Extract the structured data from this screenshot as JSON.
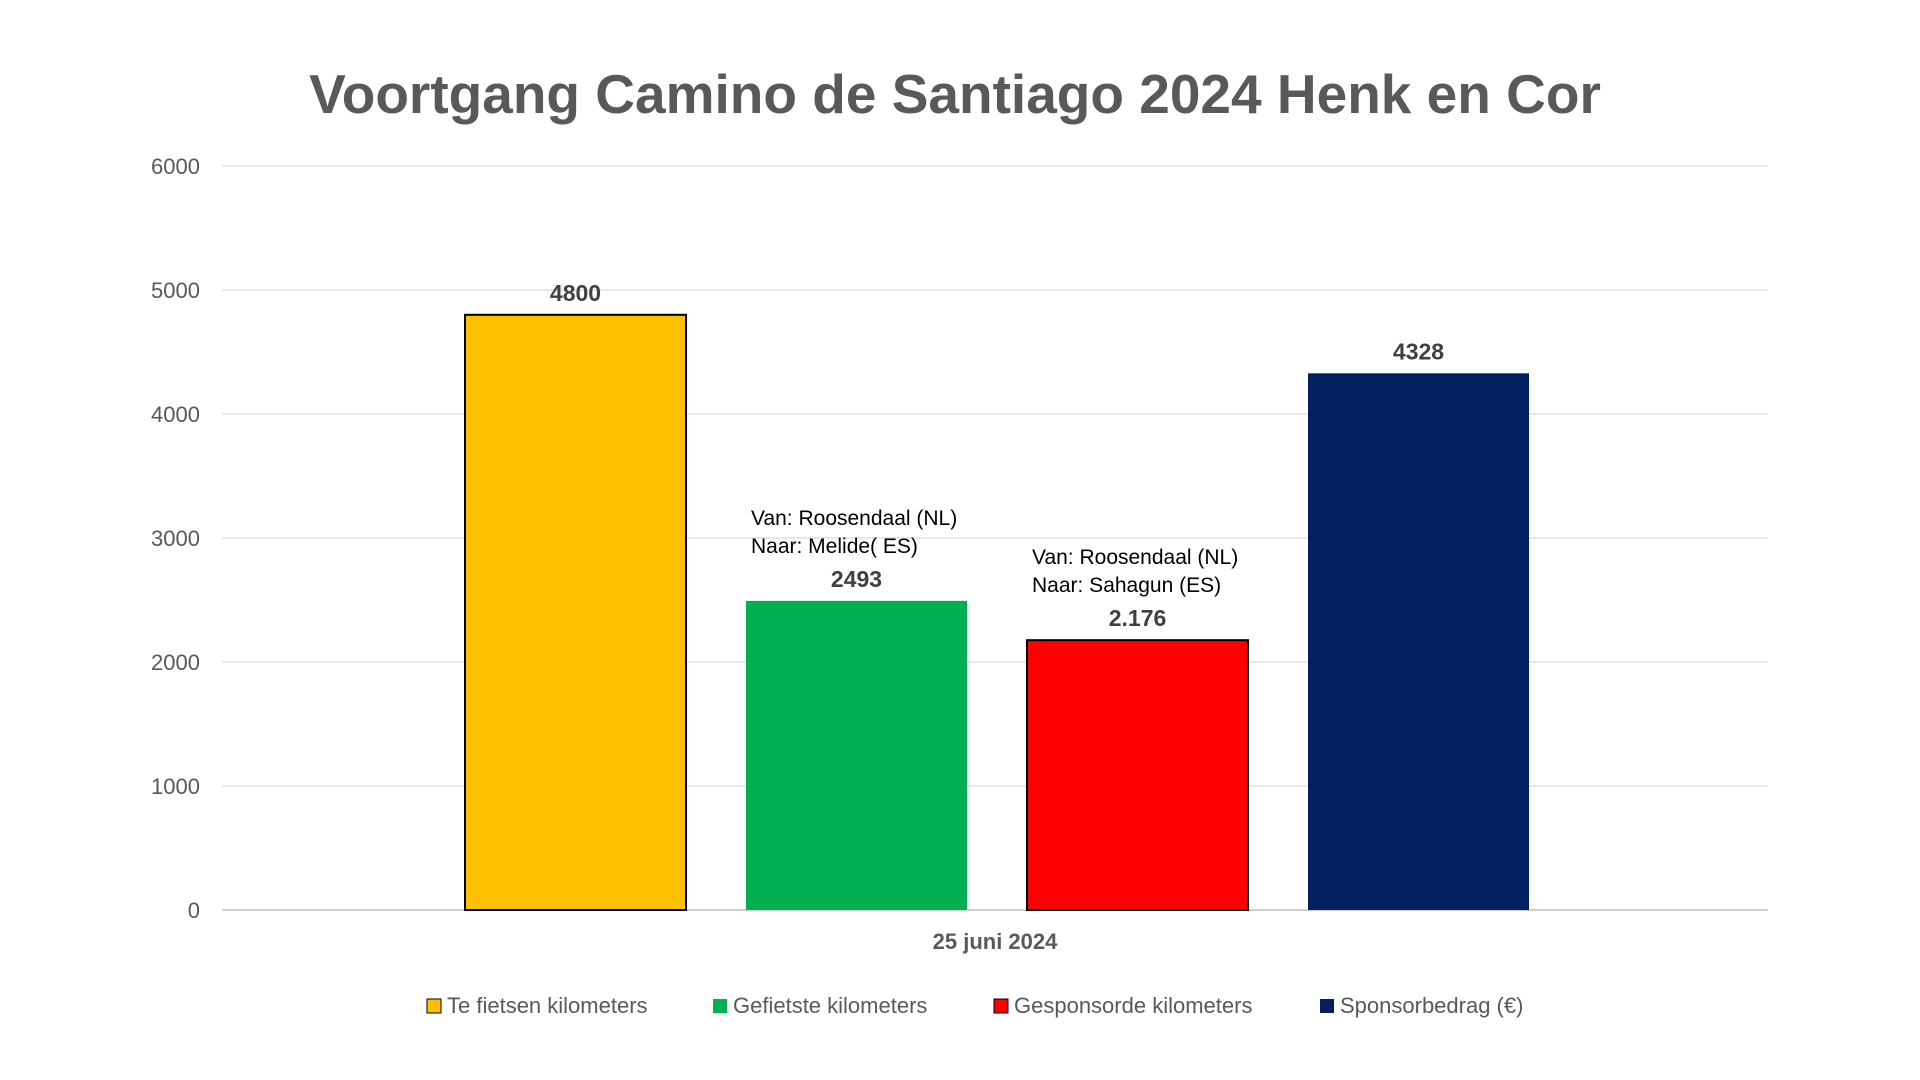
{
  "chart_data": {
    "type": "bar",
    "title": "Voortgang Camino de Santiago 2024  Henk en Cor",
    "categories": [
      "25 juni 2024"
    ],
    "ylim": [
      0,
      6000
    ],
    "yticks": [
      0,
      1000,
      2000,
      3000,
      4000,
      5000,
      6000
    ],
    "grid": true,
    "legend_position": "bottom",
    "xlabel": "",
    "ylabel": "",
    "series": [
      {
        "name": "Te fietsen kilometers",
        "values": [
          4800
        ],
        "label": "4800",
        "color": "#FFC000",
        "outline": true,
        "note": []
      },
      {
        "name": "Gefietste kilometers",
        "values": [
          2493
        ],
        "label": "2493",
        "color": "#00B050",
        "outline": false,
        "note": [
          "Van:   Roosendaal (NL)",
          "Naar: Melide( ES)"
        ]
      },
      {
        "name": "Gesponsorde kilometers",
        "values": [
          2176
        ],
        "label": "2.176",
        "color": "#FF0000",
        "outline": true,
        "note": [
          "Van:   Roosendaal (NL)",
          "Naar: Sahagun (ES)"
        ]
      },
      {
        "name": "Sponsorbedrag (€)",
        "values": [
          4328
        ],
        "label": "4328",
        "color": "#002060",
        "outline": false,
        "note": []
      }
    ]
  }
}
